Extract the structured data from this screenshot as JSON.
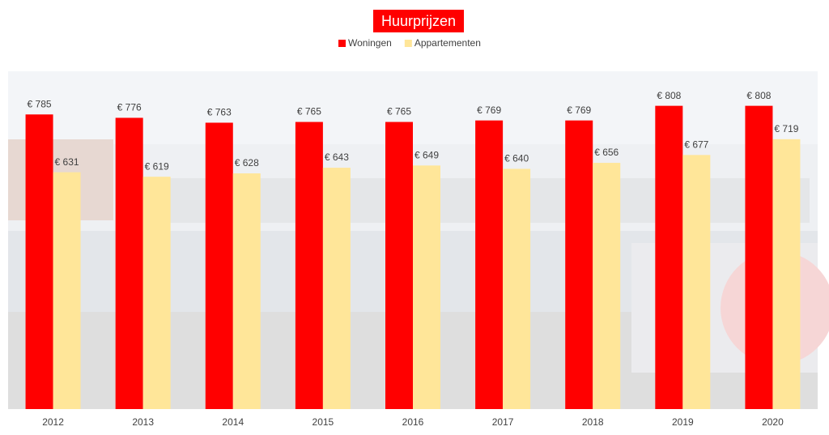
{
  "chart_data": {
    "type": "bar",
    "title": "Huurprijzen",
    "categories": [
      "2012",
      "2013",
      "2014",
      "2015",
      "2016",
      "2017",
      "2018",
      "2019",
      "2020"
    ],
    "series": [
      {
        "name": "Woningen",
        "color": "#ff0000",
        "values": [
          785,
          776,
          763,
          765,
          765,
          769,
          769,
          808,
          808
        ],
        "value_labels": [
          "€ 785",
          "€ 776",
          "€ 763",
          "€ 765",
          "€ 765",
          "€ 769",
          "€ 769",
          "€ 808",
          "€ 808"
        ]
      },
      {
        "name": "Appartementen",
        "color": "#ffe699",
        "values": [
          631,
          619,
          628,
          643,
          649,
          640,
          656,
          677,
          719
        ],
        "value_labels": [
          "€ 631",
          "€ 619",
          "€ 628",
          "€ 643",
          "€ 649",
          "€ 640",
          "€ 656",
          "€ 677",
          "€ 719"
        ]
      }
    ],
    "ylim": [
      0,
      900
    ]
  }
}
